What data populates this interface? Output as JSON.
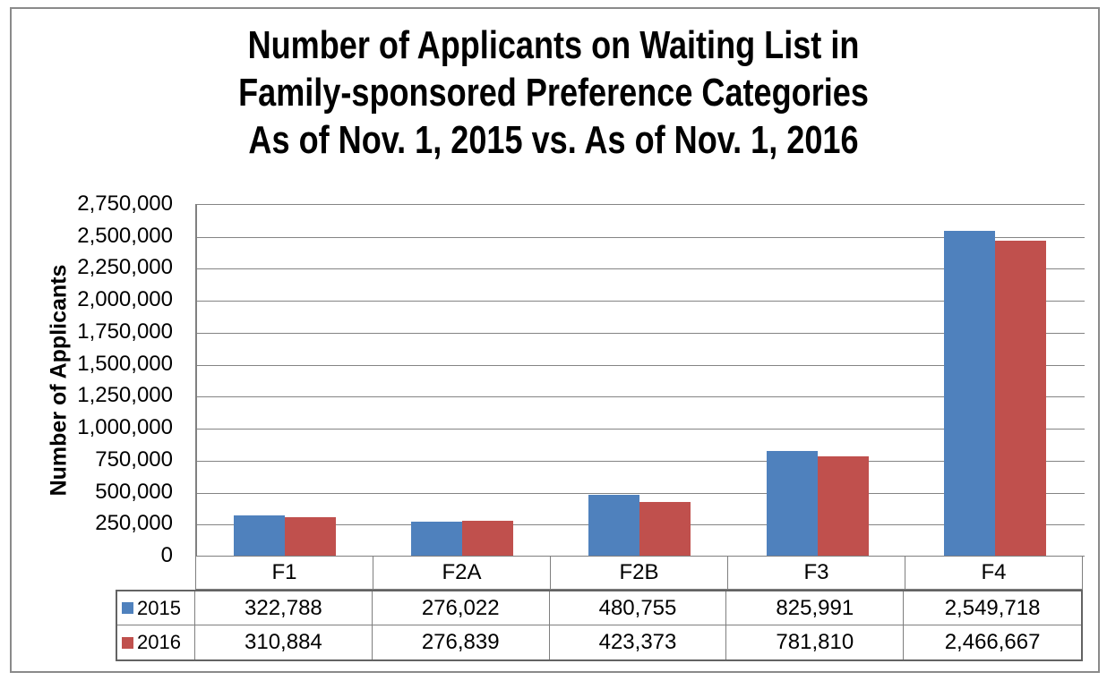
{
  "chart_data": {
    "type": "bar",
    "title_lines": [
      "Number of Applicants on Waiting List in",
      "Family-sponsored Preference Categories",
      "As of Nov. 1, 2015 vs. As of Nov. 1, 2016"
    ],
    "ylabel": "Number of Applicants",
    "xlabel": "",
    "categories": [
      "F1",
      "F2A",
      "F2B",
      "F3",
      "F4"
    ],
    "series": [
      {
        "name": "2015",
        "color": "#4F81BD",
        "values": [
          322788,
          276022,
          480755,
          825991,
          2549718
        ],
        "labels": [
          "322,788",
          "276,022",
          "480,755",
          "825,991",
          "2,549,718"
        ]
      },
      {
        "name": "2016",
        "color": "#C0504D",
        "values": [
          310884,
          276839,
          423373,
          781810,
          2466667
        ],
        "labels": [
          "310,884",
          "276,839",
          "423,373",
          "781,810",
          "2,466,667"
        ]
      }
    ],
    "ylim": [
      0,
      2750000
    ],
    "ytick_step": 250000,
    "ytick_labels": [
      "0",
      "250,000",
      "500,000",
      "750,000",
      "1,000,000",
      "1,250,000",
      "1,500,000",
      "1,750,000",
      "2,000,000",
      "2,250,000",
      "2,500,000",
      "2,750,000"
    ],
    "grid": true,
    "legend_position": "table-left"
  },
  "colors": {
    "gridline": "#848484",
    "axis": "#808080",
    "table_border": "#7f7f7f",
    "frame": "#8a8a8a"
  }
}
